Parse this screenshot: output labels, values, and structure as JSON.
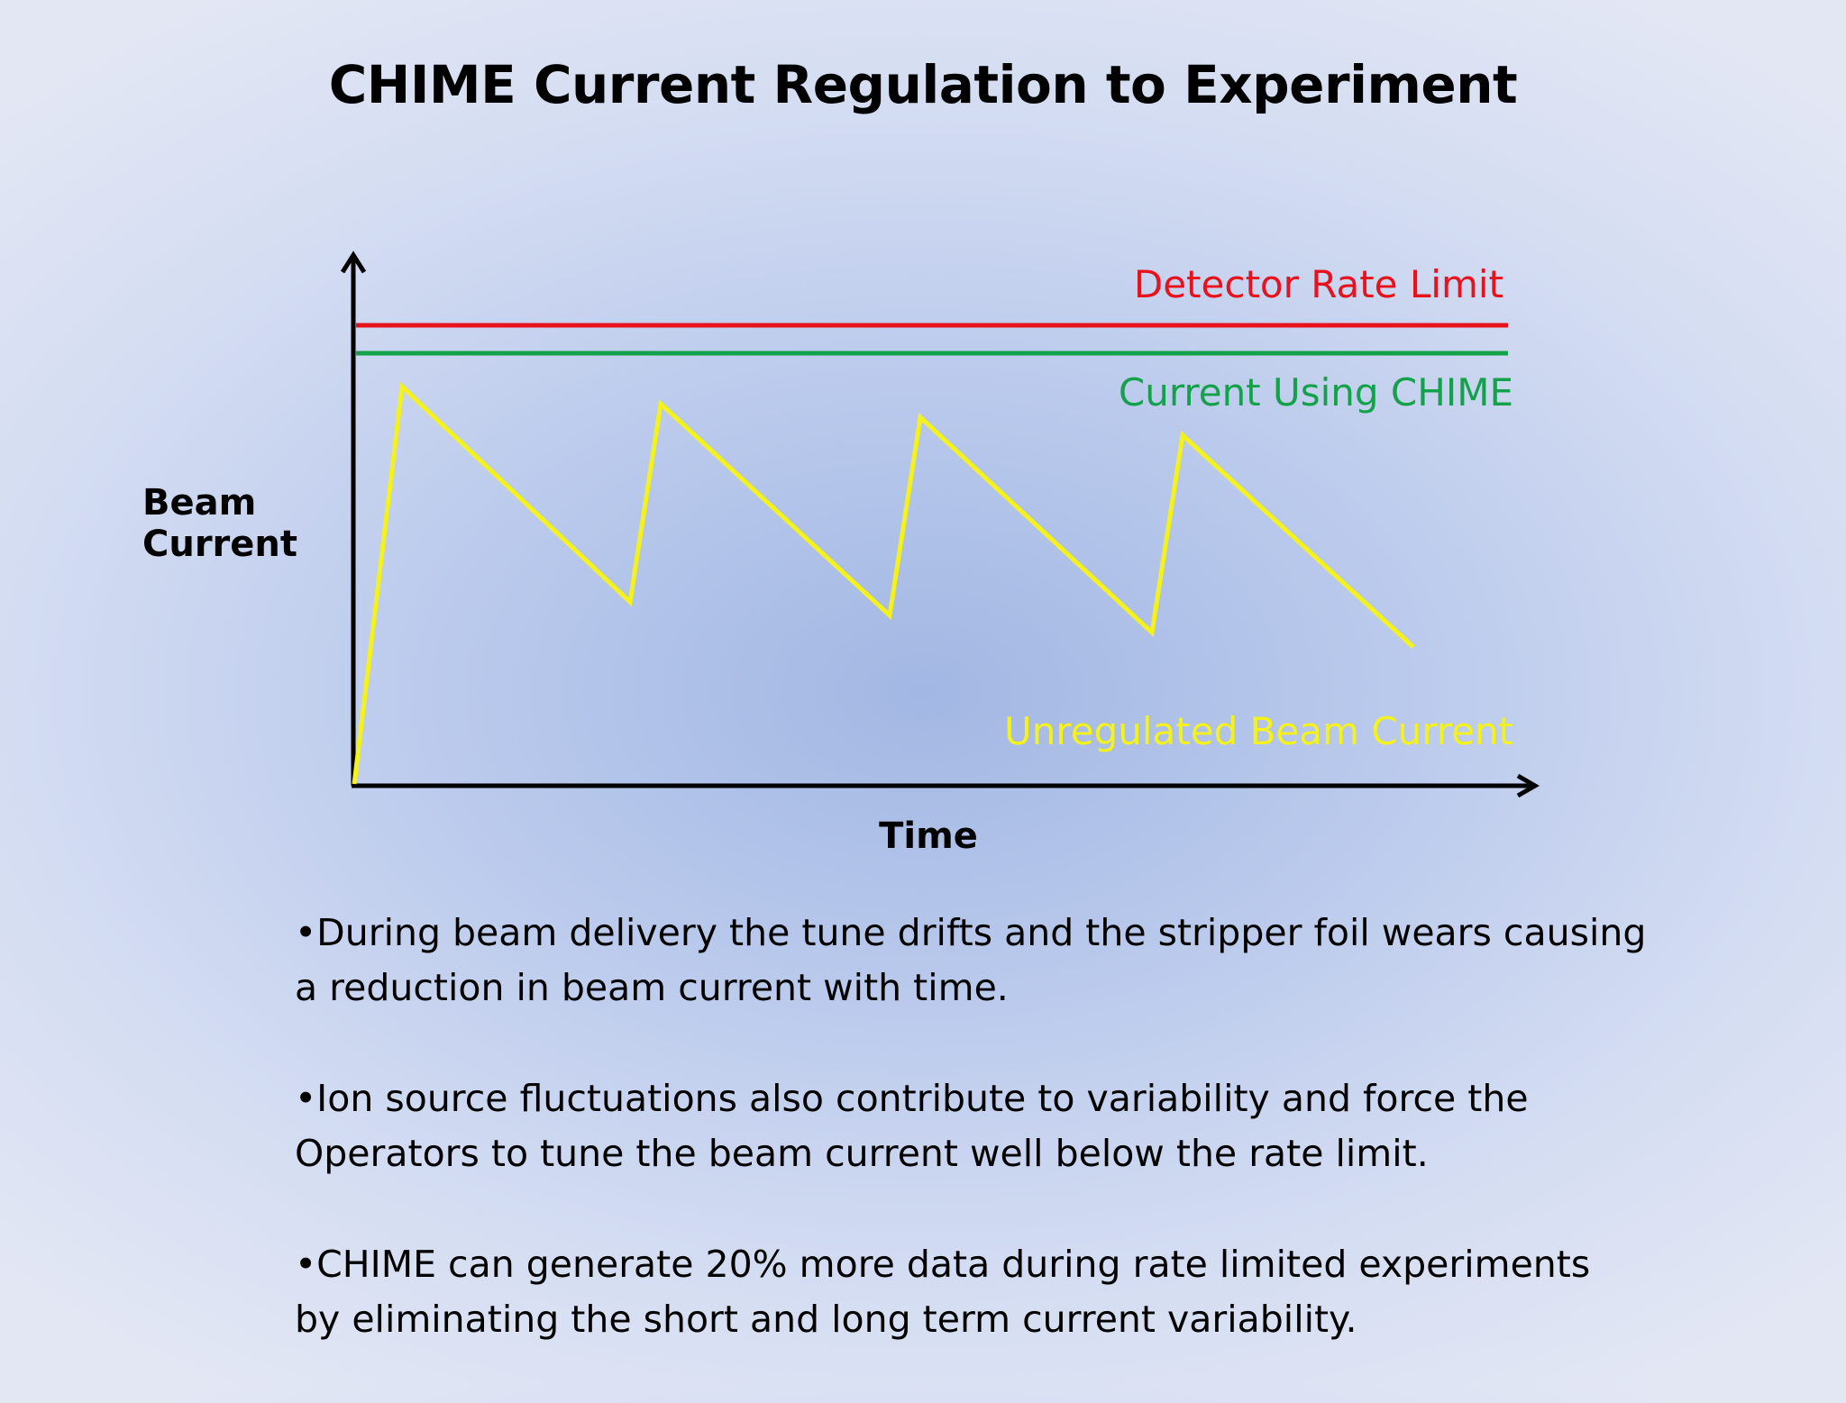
{
  "slide": {
    "title": "CHIME Current Regulation to Experiment"
  },
  "diagram": {
    "y_axis_label_line1": "Beam",
    "y_axis_label_line2": "Current",
    "x_axis_label": "Time",
    "line_labels": {
      "detector_rate_limit": "Detector Rate Limit",
      "current_using_chime": "Current Using CHIME",
      "unregulated_beam_current": "Unregulated Beam Current"
    },
    "colors": {
      "detector_rate_limit": "#e8121c",
      "current_using_chime": "#13a24a",
      "unregulated_beam_current": "#f4f21a",
      "axes": "#000000"
    }
  },
  "bullets": [
    "•During beam delivery the tune drifts and the stripper foil wears causing a reduction in beam current with time.",
    "•Ion source fluctuations also contribute to variability and force the Operators to tune the beam current well below the rate limit.",
    "•CHIME can generate 20% more data during rate limited experiments by eliminating the short and long term current variability."
  ]
}
